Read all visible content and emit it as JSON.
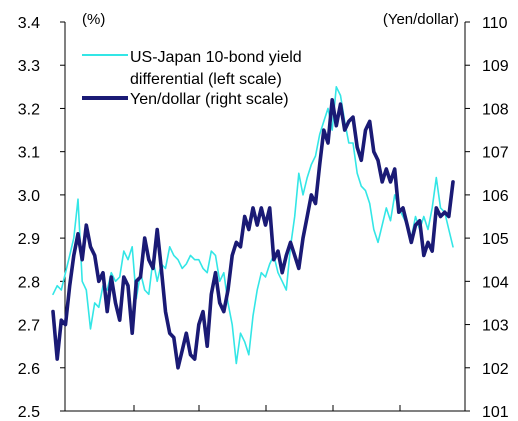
{
  "chart_data": {
    "type": "line",
    "left_axis": {
      "unit_label": "(%)",
      "ylim": [
        2.5,
        3.4
      ],
      "ticks": [
        "2.5",
        "2.6",
        "2.7",
        "2.8",
        "2.9",
        "3.0",
        "3.1",
        "3.2",
        "3.3",
        "3.4"
      ]
    },
    "right_axis": {
      "unit_label": "(Yen/dollar)",
      "ylim": [
        101,
        110
      ],
      "ticks": [
        "101",
        "102",
        "103",
        "104",
        "105",
        "106",
        "107",
        "108",
        "109",
        "110"
      ]
    },
    "x_points": 97,
    "legend": [
      "US-Japan 10-bond yield",
      "differential (left scale)",
      "Yen/dollar (right scale)"
    ],
    "series": [
      {
        "name": "US-Japan 10-bond yield differential (left scale)",
        "axis": "left",
        "color": "#33e6e6",
        "values": [
          2.77,
          2.79,
          2.78,
          2.82,
          2.86,
          2.9,
          2.99,
          2.8,
          2.78,
          2.69,
          2.75,
          2.74,
          2.79,
          2.78,
          2.82,
          2.8,
          2.81,
          2.87,
          2.85,
          2.88,
          2.76,
          2.82,
          2.78,
          2.77,
          2.85,
          2.8,
          2.84,
          2.83,
          2.88,
          2.86,
          2.85,
          2.83,
          2.84,
          2.86,
          2.85,
          2.85,
          2.83,
          2.82,
          2.87,
          2.86,
          2.8,
          2.82,
          2.75,
          2.7,
          2.61,
          2.68,
          2.66,
          2.63,
          2.72,
          2.78,
          2.82,
          2.81,
          2.84,
          2.86,
          2.82,
          2.8,
          2.78,
          2.88,
          2.95,
          3.05,
          3.0,
          3.04,
          3.07,
          3.09,
          3.14,
          3.17,
          3.2,
          3.15,
          3.25,
          3.23,
          3.17,
          3.12,
          3.12,
          3.05,
          3.02,
          3.01,
          2.98,
          2.92,
          2.89,
          2.93,
          2.97,
          2.94,
          3.0,
          2.97,
          2.95,
          2.93,
          2.9,
          2.95,
          2.92,
          2.95,
          2.92,
          2.97,
          3.04,
          2.97,
          2.96,
          2.92,
          2.88
        ],
        "point_count": 97
      },
      {
        "name": "Yen/dollar (right scale)",
        "axis": "right",
        "color": "#1a1a75",
        "values": [
          103.3,
          102.2,
          103.1,
          103.0,
          103.9,
          104.6,
          105.1,
          104.5,
          105.3,
          104.8,
          104.6,
          104.0,
          104.2,
          103.3,
          104.1,
          103.5,
          103.1,
          104.1,
          103.9,
          102.8,
          104.0,
          104.1,
          105.0,
          104.5,
          104.3,
          105.2,
          104.3,
          103.3,
          102.8,
          102.7,
          102.0,
          102.4,
          102.8,
          102.3,
          102.2,
          103.0,
          103.3,
          102.5,
          103.7,
          104.2,
          103.5,
          103.3,
          103.8,
          104.6,
          104.9,
          104.8,
          105.5,
          105.2,
          105.7,
          105.3,
          105.7,
          105.3,
          105.7,
          104.5,
          104.7,
          104.2,
          104.6,
          104.9,
          104.6,
          104.3,
          105.0,
          105.5,
          106.0,
          105.8,
          106.7,
          107.5,
          107.2,
          108.2,
          107.6,
          108.1,
          107.5,
          107.7,
          107.8,
          107.1,
          106.8,
          107.5,
          107.7,
          107.0,
          106.8,
          106.3,
          106.6,
          106.3,
          106.6,
          105.6,
          105.7,
          105.3,
          104.9,
          105.3,
          105.4,
          104.6,
          104.9,
          104.7,
          105.7,
          105.5,
          105.6,
          105.5,
          106.3
        ]
      }
    ]
  }
}
